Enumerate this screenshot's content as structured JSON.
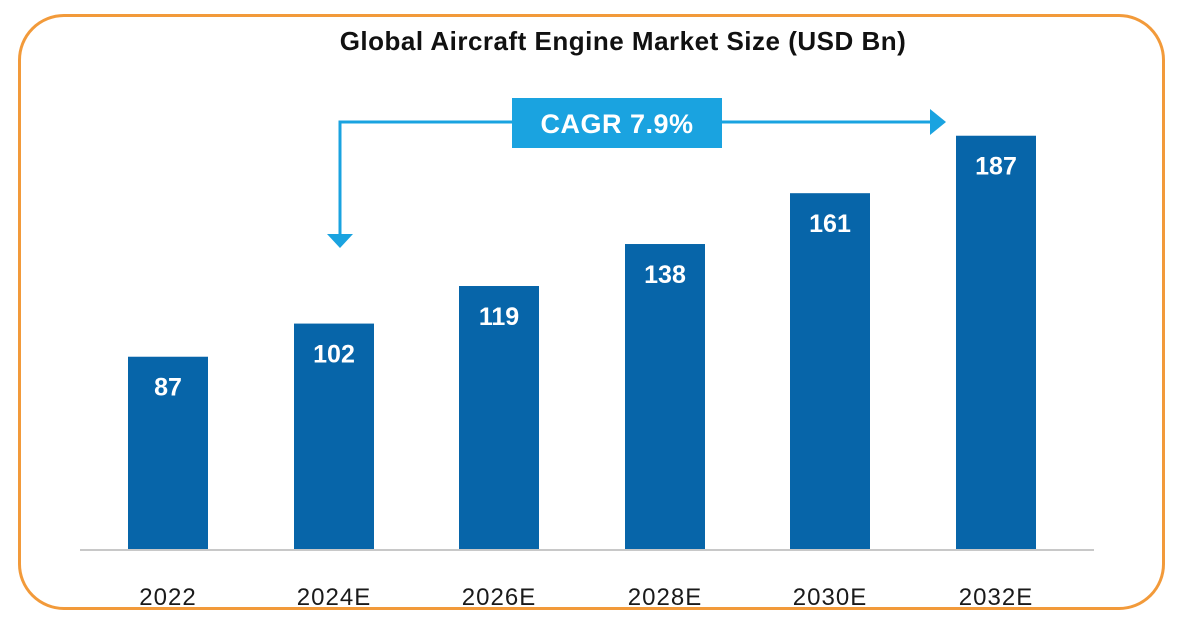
{
  "chart_data": {
    "type": "bar",
    "title": "Global Aircraft Engine Market Size (USD Bn)",
    "categories": [
      "2022",
      "2024E",
      "2026E",
      "2028E",
      "2030E",
      "2032E"
    ],
    "values": [
      87,
      102,
      119,
      138,
      161,
      187
    ],
    "xlabel": "",
    "ylabel": "",
    "ylim": [
      0,
      200
    ],
    "grid": false,
    "annotation": {
      "text": "CAGR 7.9%",
      "from_category": "2024E",
      "to_category": "2032E"
    }
  },
  "colors": {
    "bar": "#0765a9",
    "frame": "#f29a3a",
    "annotation": "#1aa3e0"
  }
}
